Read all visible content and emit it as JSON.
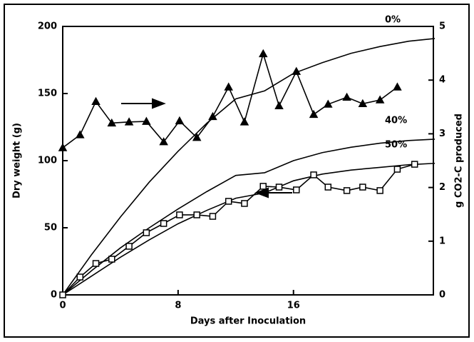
{
  "chart_data": {
    "type": "line",
    "xlabel": "Days after Inoculation",
    "ylabel": "Dry weight (g)",
    "y2label": "g CO2-C produced",
    "xlim": [
      0,
      25.7
    ],
    "xticks": [
      0,
      8,
      16
    ],
    "ylim": [
      0,
      200
    ],
    "yticks": [
      0,
      50,
      100,
      150,
      200
    ],
    "y2lim": [
      0,
      5
    ],
    "y2ticks": [
      0,
      1,
      2,
      3,
      4,
      5
    ],
    "series": [
      {
        "name": "0%",
        "marker": "none",
        "x": [
          0,
          2,
          4,
          6,
          8,
          10,
          12,
          14,
          16,
          18,
          20,
          22,
          24,
          25.8
        ],
        "values": [
          0,
          30,
          58,
          84,
          107,
          128,
          146,
          152,
          165,
          173,
          180,
          185,
          189,
          191
        ]
      },
      {
        "name": "40%",
        "marker": "none",
        "x": [
          0,
          2,
          4,
          6,
          8,
          10,
          12,
          14,
          16,
          18,
          20,
          22,
          24,
          25.8
        ],
        "values": [
          0,
          18,
          35,
          50,
          64,
          77,
          89,
          91,
          100,
          106,
          110,
          113,
          115,
          116
        ]
      },
      {
        "name": "50%",
        "marker": "none",
        "x": [
          0,
          2,
          4,
          6,
          8,
          10,
          12,
          14,
          16,
          18,
          20,
          22,
          24,
          25.8
        ],
        "values": [
          0,
          14,
          28,
          41,
          53,
          63,
          72,
          76,
          85,
          90,
          93,
          95,
          97,
          98
        ]
      },
      {
        "marker": "square",
        "x": [
          0,
          1.2,
          2.3,
          3.4,
          4.6,
          5.8,
          7,
          8.1,
          9.3,
          10.4,
          11.5,
          12.6,
          13.9,
          15,
          16.2,
          17.4,
          18.4,
          19.7,
          20.8,
          22,
          23.2,
          24.4
        ],
        "values": [
          0,
          13.3,
          23.4,
          26.6,
          36.2,
          46.3,
          53.2,
          59.6,
          59.6,
          58.5,
          69.7,
          68.1,
          80.9,
          80.3,
          78.2,
          89.4,
          80.3,
          77.7,
          80.3,
          77.7,
          93.6,
          97.3
        ]
      },
      {
        "marker": "triangle",
        "axis": "y2",
        "x": [
          0,
          1.2,
          2.3,
          3.4,
          4.6,
          5.8,
          7,
          8.1,
          9.3,
          10.4,
          11.5,
          12.6,
          13.9,
          15,
          16.2,
          17.4,
          18.4,
          19.7,
          20.8,
          22,
          23.2
        ],
        "values": [
          2.74,
          2.98,
          3.6,
          3.2,
          3.22,
          3.23,
          2.85,
          3.24,
          2.93,
          3.32,
          3.87,
          3.22,
          4.49,
          3.52,
          4.16,
          3.36,
          3.55,
          3.68,
          3.56,
          3.63,
          3.87
        ]
      }
    ]
  }
}
